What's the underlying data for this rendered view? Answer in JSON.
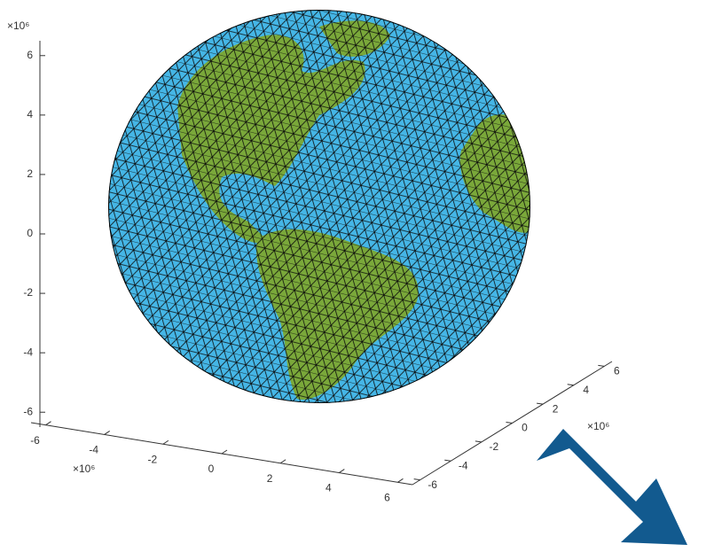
{
  "chart_data": {
    "type": "surface3d",
    "xlim": [
      -6.5,
      6.5
    ],
    "xticks": [
      -6,
      -4,
      -2,
      0,
      2,
      4,
      6
    ],
    "x_multiplier": "×10⁶",
    "ylim": [
      -6.5,
      6.5
    ],
    "yticks": [
      -6,
      -4,
      -2,
      0,
      2,
      4,
      6
    ],
    "y_multiplier": "×10⁶",
    "zlim": [
      -6.5,
      6.5
    ],
    "zticks": [
      -6,
      -4,
      -2,
      0,
      2,
      4,
      6
    ],
    "z_multiplier": "×10⁶",
    "ocean_color": "#45b6e6",
    "land_color": "#7aa83a"
  }
}
